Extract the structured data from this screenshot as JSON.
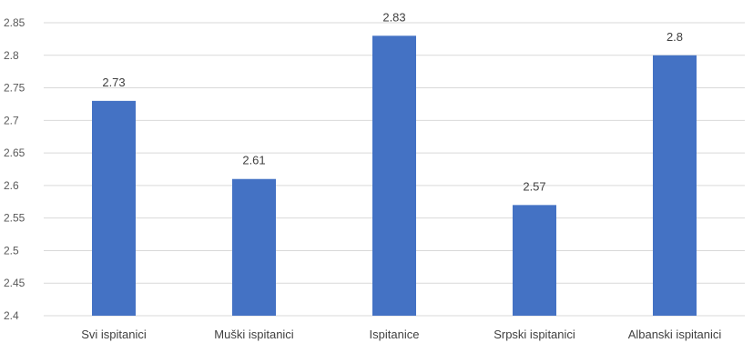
{
  "chart_data": {
    "type": "bar",
    "categories": [
      "Svi ispitanici",
      "Muški ispitanici",
      "Ispitanice",
      "Srpski ispitanici",
      "Albanski ispitanici"
    ],
    "values": [
      2.73,
      2.61,
      2.83,
      2.57,
      2.8
    ],
    "data_labels": [
      "2.73",
      "2.61",
      "2.83",
      "2.57",
      "2.8"
    ],
    "y_ticks": [
      "2.4",
      "2.45",
      "2.5",
      "2.55",
      "2.6",
      "2.65",
      "2.7",
      "2.75",
      "2.8",
      "2.85"
    ],
    "ylim": [
      2.4,
      2.85
    ],
    "title": "",
    "xlabel": "",
    "ylabel": "",
    "grid": true,
    "legend": "none",
    "bar_color": "#4472c4"
  }
}
